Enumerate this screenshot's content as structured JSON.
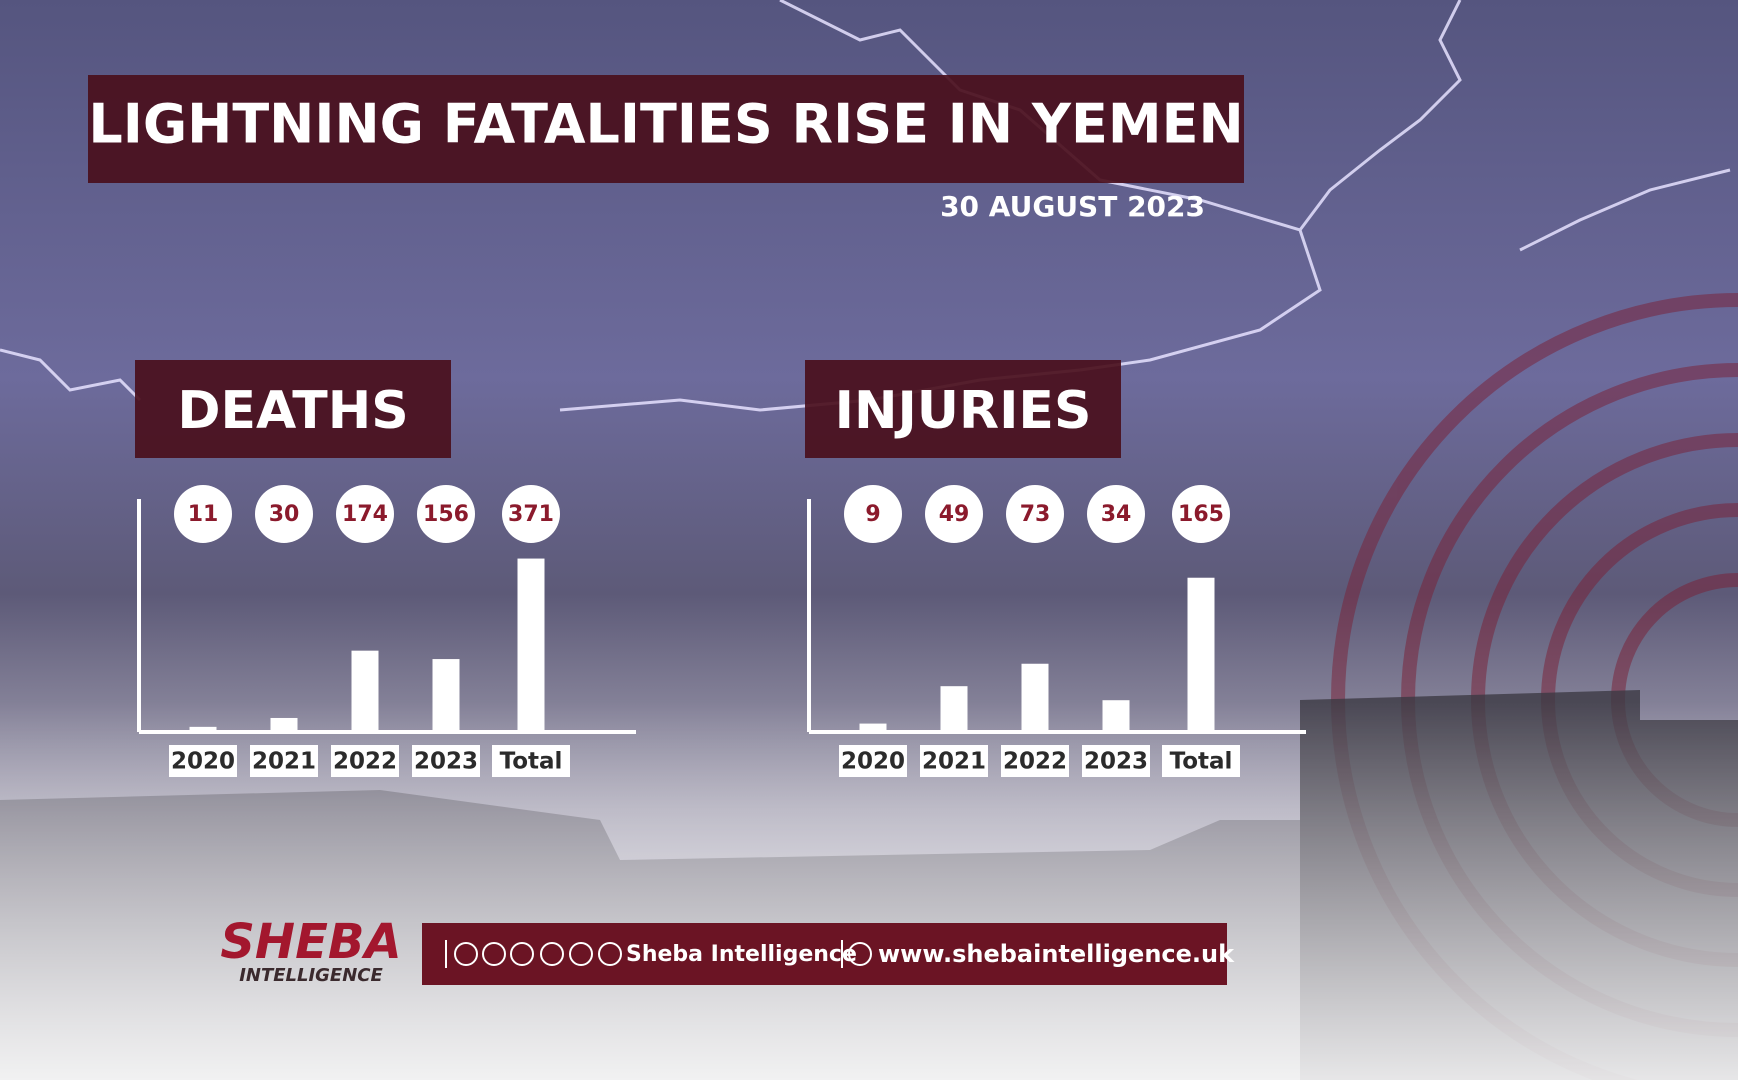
{
  "header": {
    "title": "LIGHTNING FATALITIES RISE IN YEMEN",
    "date": "30 AUGUST 2023"
  },
  "chart_data": [
    {
      "type": "bar",
      "title": "DEATHS",
      "categories": [
        "2020",
        "2021",
        "2022",
        "2023",
        "Total"
      ],
      "values": [
        11,
        30,
        174,
        156,
        371
      ],
      "color": "#ffffff",
      "label_color": "#8b1a2c",
      "ylim": [
        0,
        400
      ]
    },
    {
      "type": "bar",
      "title": "INJURIES",
      "categories": [
        "2020",
        "2021",
        "2022",
        "2023",
        "Total"
      ],
      "values": [
        9,
        49,
        73,
        34,
        165
      ],
      "color": "#ffffff",
      "label_color": "#8b1a2c",
      "ylim": [
        0,
        200
      ]
    }
  ],
  "footer": {
    "logo": "SHEBA",
    "logo_sub": "INTELLIGENCE",
    "social": "Sheba Intelligence",
    "website": "www.shebaintelligence.uk"
  }
}
